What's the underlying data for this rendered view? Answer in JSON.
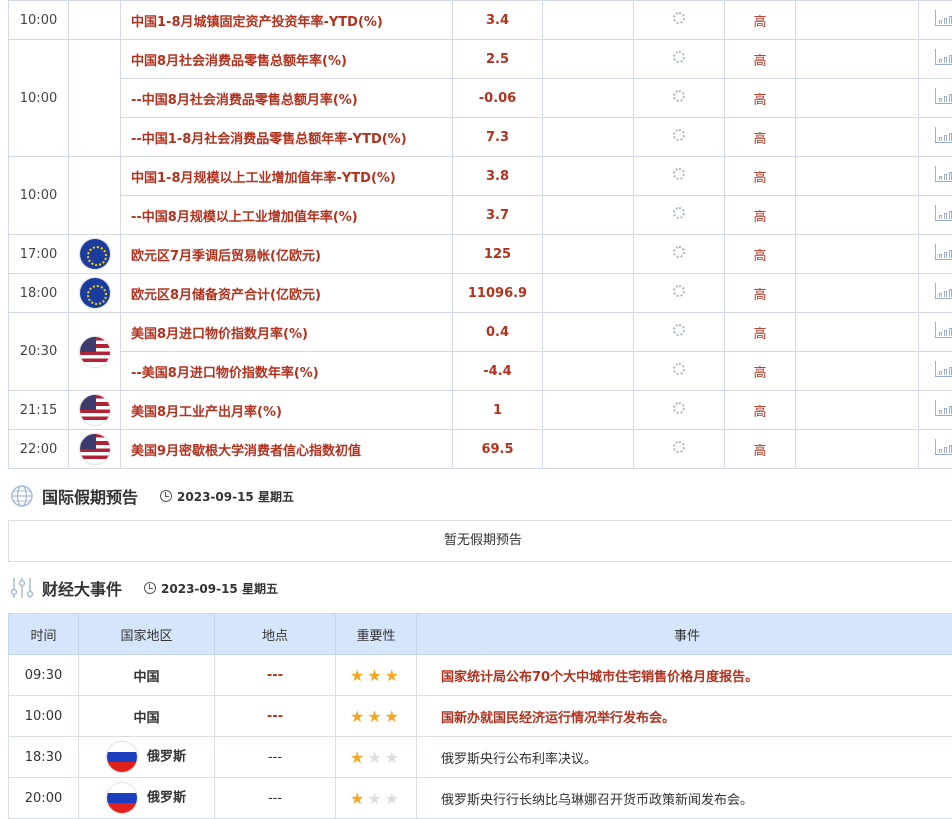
{
  "calendar": {
    "groups": [
      {
        "time": "10:00",
        "flag": "",
        "rows": [
          {
            "event": "中国1-8月城镇固定资产投资年率-YTD(%)",
            "previous": "3.4",
            "importance": "高"
          }
        ]
      },
      {
        "time": "10:00",
        "flag": "",
        "rows": [
          {
            "event": "中国8月社会消费品零售总额年率(%)",
            "previous": "2.5",
            "importance": "高"
          },
          {
            "event": "--中国8月社会消费品零售总额月率(%)",
            "previous": "-0.06",
            "importance": "高"
          },
          {
            "event": "--中国1-8月社会消费品零售总额年率-YTD(%)",
            "previous": "7.3",
            "importance": "高"
          }
        ]
      },
      {
        "time": "10:00",
        "flag": "",
        "rows": [
          {
            "event": "中国1-8月规模以上工业增加值年率-YTD(%)",
            "previous": "3.8",
            "importance": "高"
          },
          {
            "event": "--中国8月规模以上工业增加值年率(%)",
            "previous": "3.7",
            "importance": "高"
          }
        ]
      },
      {
        "time": "17:00",
        "flag": "eu",
        "rows": [
          {
            "event": "欧元区7月季调后贸易帐(亿欧元)",
            "previous": "125",
            "importance": "高"
          }
        ]
      },
      {
        "time": "18:00",
        "flag": "eu",
        "rows": [
          {
            "event": "欧元区8月储备资产合计(亿欧元)",
            "previous": "11096.9",
            "importance": "高"
          }
        ]
      },
      {
        "time": "20:30",
        "flag": "us",
        "rows": [
          {
            "event": "美国8月进口物价指数月率(%)",
            "previous": "0.4",
            "importance": "高"
          },
          {
            "event": "--美国8月进口物价指数年率(%)",
            "previous": "-4.4",
            "importance": "高"
          }
        ]
      },
      {
        "time": "21:15",
        "flag": "us",
        "rows": [
          {
            "event": "美国8月工业产出月率(%)",
            "previous": "1",
            "importance": "高"
          }
        ]
      },
      {
        "time": "22:00",
        "flag": "us",
        "rows": [
          {
            "event": "美国9月密歇根大学消费者信心指数初值",
            "previous": "69.5",
            "importance": "高"
          }
        ]
      }
    ]
  },
  "holiday": {
    "title": "国际假期预告",
    "date": "2023-09-15 星期五",
    "empty": "暂无假期预告"
  },
  "events": {
    "title": "财经大事件",
    "date": "2023-09-15 星期五",
    "headers": [
      "时间",
      "国家地区",
      "地点",
      "重要性",
      "事件"
    ],
    "rows": [
      {
        "time": "09:30",
        "country": "中国",
        "flag": "",
        "location": "---",
        "stars": 3,
        "desc": "国家统计局公布70个大中城市住宅销售价格月度报告。",
        "hot": true
      },
      {
        "time": "10:00",
        "country": "中国",
        "flag": "",
        "location": "---",
        "stars": 3,
        "desc": "国新办就国民经济运行情况举行发布会。",
        "hot": true
      },
      {
        "time": "18:30",
        "country": "俄罗斯",
        "flag": "ru",
        "location": "---",
        "stars": 1,
        "desc": "俄罗斯央行公布利率决议。",
        "hot": false
      },
      {
        "time": "20:00",
        "country": "俄罗斯",
        "flag": "ru",
        "location": "---",
        "stars": 1,
        "desc": "俄罗斯央行行长纳比乌琳娜召开货币政策新闻发布会。",
        "hot": false
      }
    ]
  },
  "colors": {
    "accent_red": "#b1321f",
    "header_blue": "#d5e5fb",
    "star": "#f5a623"
  }
}
